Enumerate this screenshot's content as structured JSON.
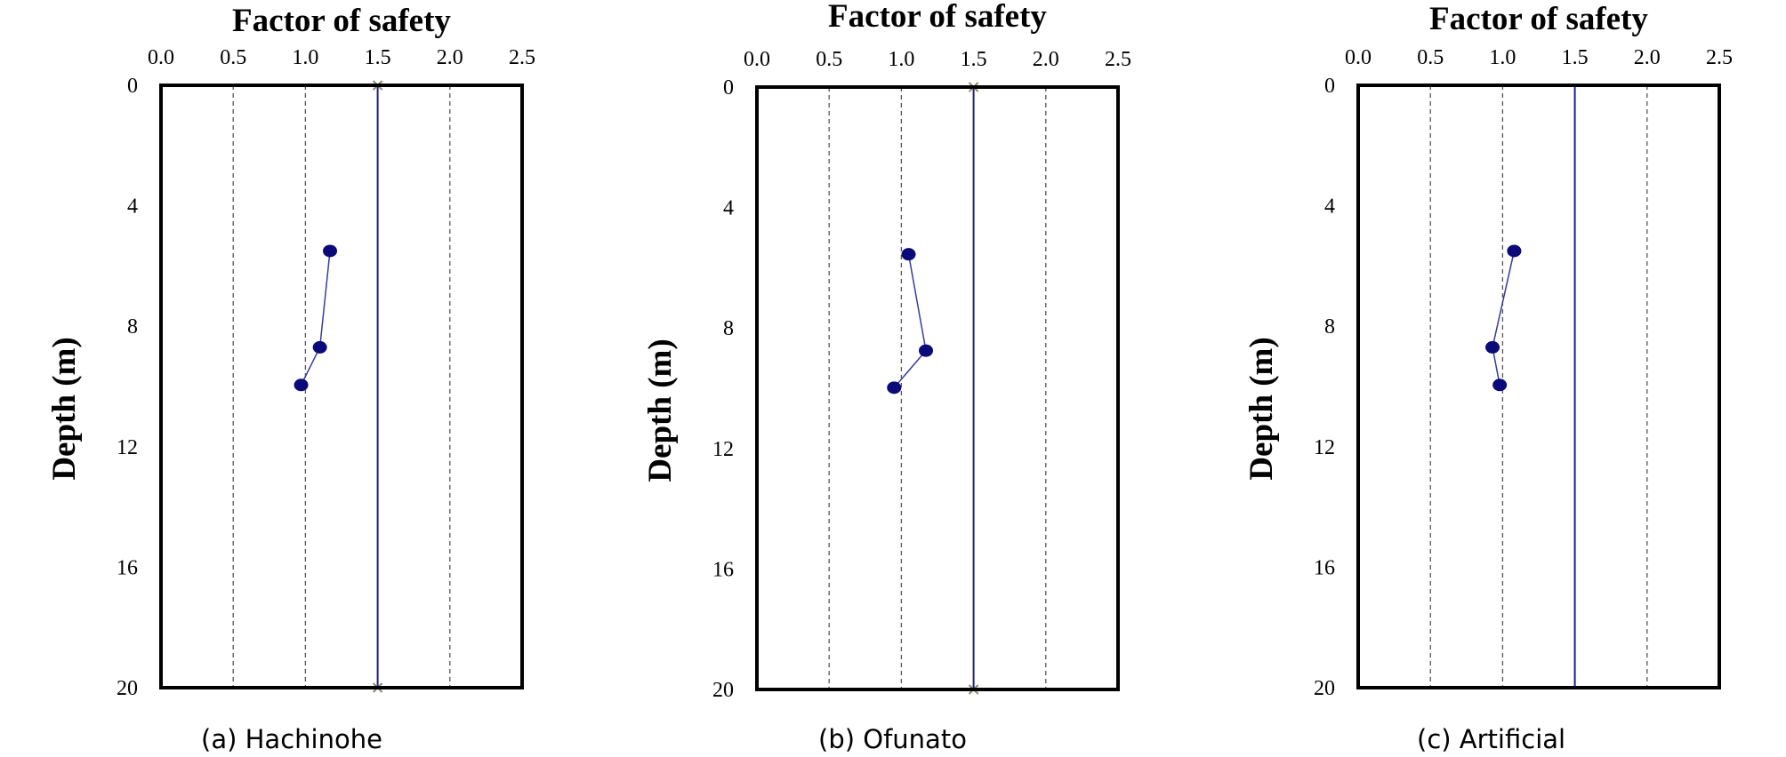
{
  "chart_data": [
    {
      "type": "scatter",
      "caption": "(a) Hachinohe",
      "xlabel": "Factor of safety",
      "ylabel": "Depth (m)",
      "xlim": [
        0,
        2.5
      ],
      "ylim": [
        0,
        20
      ],
      "y_inverted": true,
      "xticks": [
        "0.0",
        "0.5",
        "1.0",
        "1.5",
        "2.0",
        "2.5"
      ],
      "yticks": [
        "0",
        "4",
        "8",
        "12",
        "16",
        "20"
      ],
      "grid": "vertical dashed",
      "reference_line": {
        "x": 1.5,
        "color": "#1f1f8f",
        "end_markers": true
      },
      "series": [
        {
          "color": "#0a0a78",
          "points": [
            {
              "x": 1.17,
              "y": 5.5,
              "connect": false
            },
            {
              "x": 1.1,
              "y": 8.7,
              "connect": true
            },
            {
              "x": 0.97,
              "y": 9.95,
              "connect": true
            }
          ]
        }
      ]
    },
    {
      "type": "scatter",
      "caption": "(b) Ofunato",
      "xlabel": "Factor of safety",
      "ylabel": "Depth (m)",
      "xlim": [
        0,
        2.5
      ],
      "ylim": [
        0,
        20
      ],
      "y_inverted": true,
      "xticks": [
        "0.0",
        "0.5",
        "1.0",
        "1.5",
        "2.0",
        "2.5"
      ],
      "yticks": [
        "0",
        "4",
        "8",
        "12",
        "16",
        "20"
      ],
      "grid": "vertical dashed",
      "reference_line": {
        "x": 1.5,
        "color": "#1f1f8f",
        "end_markers": true
      },
      "series": [
        {
          "color": "#0a0a78",
          "points": [
            {
              "x": 1.05,
              "y": 5.55,
              "connect": false
            },
            {
              "x": 1.17,
              "y": 8.75,
              "connect": true
            },
            {
              "x": 0.95,
              "y": 9.98,
              "connect": true
            }
          ]
        }
      ]
    },
    {
      "type": "scatter",
      "caption": "(c) Artificial",
      "xlabel": "Factor of safety",
      "ylabel": "Depth (m)",
      "xlim": [
        0,
        2.5
      ],
      "ylim": [
        0,
        20
      ],
      "y_inverted": true,
      "xticks": [
        "0.0",
        "0.5",
        "1.0",
        "1.5",
        "2.0",
        "2.5"
      ],
      "yticks": [
        "0",
        "4",
        "8",
        "12",
        "16",
        "20"
      ],
      "grid": "vertical dashed",
      "reference_line": {
        "x": 1.5,
        "color": "#1f1f8f",
        "end_markers": false
      },
      "series": [
        {
          "color": "#0a0a78",
          "points": [
            {
              "x": 1.08,
              "y": 5.5,
              "connect": false
            },
            {
              "x": 0.93,
              "y": 8.7,
              "connect": true
            },
            {
              "x": 0.98,
              "y": 9.95,
              "connect": true
            }
          ]
        }
      ]
    }
  ]
}
